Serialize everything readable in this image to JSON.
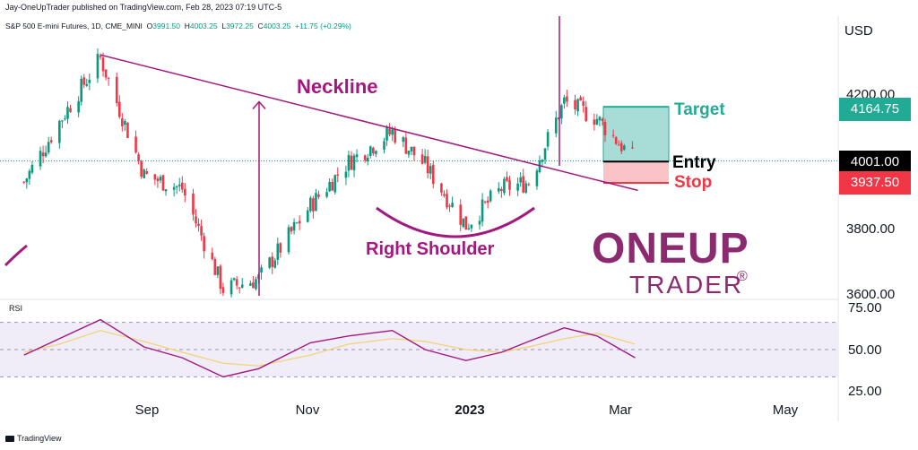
{
  "header": {
    "published": "Jay-OneUpTrader published on TradingView.com, Feb 28, 2023 07:19 UTC-5",
    "symbol": "S&P 500 E-mini Futures, 1D, CME_MINI",
    "ohlc": {
      "o_label": "O",
      "o": "3991.50",
      "h_label": "H",
      "h": "4003.25",
      "l_label": "L",
      "l": "3972.25",
      "c_label": "C",
      "c": "4003.25",
      "change": "+11.75 (+0.29%)"
    }
  },
  "price_axis": {
    "currency": "USD",
    "ticks": [
      "4200.00",
      "3800.00",
      "3600.00"
    ]
  },
  "price_badges": {
    "target": {
      "value": "4164.75",
      "color": "#22ab94"
    },
    "entry": {
      "value": "4001.00",
      "color": "#000000"
    },
    "stop": {
      "value": "3937.50",
      "color": "#f23645"
    }
  },
  "annotations": {
    "neckline": "Neckline",
    "right_shoulder": "Right Shoulder",
    "target": "Target",
    "entry": "Entry",
    "stop": "Stop"
  },
  "time_axis": [
    "Sep",
    "Nov",
    "2023",
    "Mar",
    "May"
  ],
  "rsi": {
    "title": "RSI",
    "ticks": [
      "75.00",
      "50.00",
      "25.00"
    ]
  },
  "footer": {
    "brand": "TradingView"
  },
  "logo": {
    "line1": "ONEUP",
    "line2": "TRADER",
    "reg": "®"
  },
  "colors": {
    "up": "#089981",
    "down": "#f23645",
    "annotation": "#a3187f",
    "target_zone": "#a8dcd6",
    "stop_zone": "#f9c3c8",
    "rsi_line": "#a3187f",
    "rsi_ma": "#f3d36e",
    "rsi_band": "#f0ecf8"
  },
  "chart_data": [
    {
      "type": "candlestick",
      "title": "S&P 500 E-mini Futures, 1D, CME_MINI",
      "ylim": [
        3580,
        4480
      ],
      "x": [
        "2022-07-19",
        "2022-08-01",
        "2022-08-16",
        "2022-09-01",
        "2022-09-15",
        "2022-09-30",
        "2022-10-13",
        "2022-11-01",
        "2022-11-15",
        "2022-12-01",
        "2022-12-13",
        "2022-12-28",
        "2023-01-10",
        "2023-01-20",
        "2023-02-02",
        "2023-02-14",
        "2023-02-28"
      ],
      "close": [
        3940,
        4120,
        4310,
        3960,
        3920,
        3620,
        3650,
        3870,
        4000,
        4090,
        3990,
        3810,
        3920,
        3940,
        4180,
        4130,
        4003
      ],
      "neckline": {
        "x": [
          "2022-08-16",
          "2023-03-01"
        ],
        "y": [
          4320,
          3915
        ]
      },
      "pattern_arrows": {
        "from": 3600,
        "to": 4180
      },
      "trade": {
        "target": 4164.75,
        "entry": 4001.0,
        "stop": 3937.5
      },
      "annotations": [
        "Neckline",
        "Right Shoulder",
        "Target",
        "Entry",
        "Stop"
      ]
    },
    {
      "type": "line",
      "title": "RSI",
      "ylim": [
        20,
        80
      ],
      "levels": [
        70,
        50,
        30
      ],
      "x": [
        "2022-07-19",
        "2022-08-01",
        "2022-08-16",
        "2022-09-01",
        "2022-09-15",
        "2022-09-30",
        "2022-10-13",
        "2022-11-01",
        "2022-11-15",
        "2022-12-01",
        "2022-12-13",
        "2022-12-28",
        "2023-01-10",
        "2023-01-20",
        "2023-02-02",
        "2023-02-14",
        "2023-02-28"
      ],
      "series": [
        {
          "values": [
            46,
            58,
            72,
            52,
            44,
            30,
            36,
            55,
            60,
            64,
            50,
            42,
            48,
            56,
            66,
            60,
            44
          ]
        },
        {
          "values": [
            48,
            54,
            64,
            56,
            48,
            40,
            38,
            46,
            54,
            58,
            56,
            50,
            48,
            52,
            58,
            62,
            54
          ]
        }
      ]
    }
  ]
}
